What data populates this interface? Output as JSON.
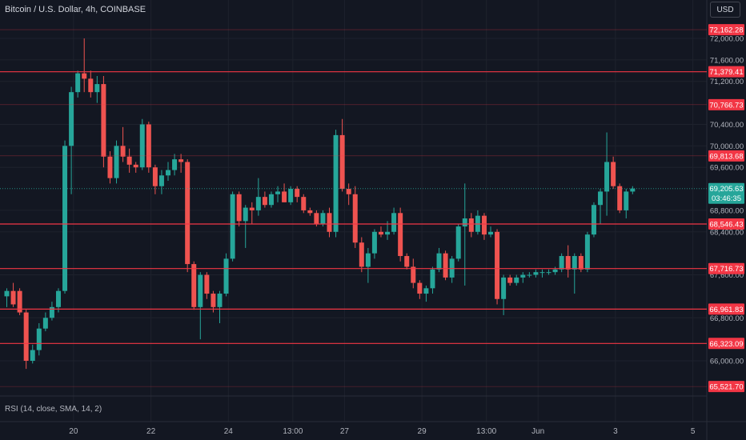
{
  "header": {
    "symbol_title": "Bitcoin / U.S. Dollar, 4h, COINBASE",
    "currency_button": "USD"
  },
  "indicator": {
    "rsi_label": "RSI (14, close, SMA, 14, 2)"
  },
  "colors": {
    "background": "#131722",
    "up": "#26a69a",
    "down": "#ef5350",
    "level_line": "#f23645",
    "axis_text": "#b2b5be",
    "grid": "#1e222d",
    "last_price_badge": "#26a69a"
  },
  "chart_data": {
    "type": "candlestick",
    "y_axis": {
      "ticks": [
        72000,
        71600,
        71200,
        70400,
        70000,
        69600,
        68800,
        68400,
        67600,
        66800,
        66000
      ],
      "tick_labels": [
        "72,000.00",
        "71,600.00",
        "71,200.00",
        "70,400.00",
        "70,000.00",
        "69,600.00",
        "68,800.00",
        "68,400.00",
        "67,600.00",
        "66,800.00",
        "66,000.00"
      ],
      "range": [
        65400,
        72300
      ]
    },
    "x_axis": {
      "ticks": [
        {
          "label": "20",
          "index": 6
        },
        {
          "label": "22",
          "index": 18
        },
        {
          "label": "24",
          "index": 30
        },
        {
          "label": "13:00",
          "index": 40
        },
        {
          "label": "27",
          "index": 48
        },
        {
          "label": "29",
          "index": 60
        },
        {
          "label": "13:00",
          "index": 70
        },
        {
          "label": "Jun",
          "index": 78
        },
        {
          "label": "3",
          "index": 90
        },
        {
          "label": "5",
          "index": 102
        }
      ]
    },
    "levels": [
      {
        "price": 72162.28,
        "label": "72,162.28",
        "line": false
      },
      {
        "price": 71379.41,
        "label": "71,379.41",
        "line": true
      },
      {
        "price": 70766.73,
        "label": "70,766.73",
        "line": false
      },
      {
        "price": 69813.68,
        "label": "69,813.68",
        "line": false
      },
      {
        "price": 68546.43,
        "label": "68,546.43",
        "line": true
      },
      {
        "price": 67716.73,
        "label": "67,716.73",
        "line": true
      },
      {
        "price": 66961.83,
        "label": "66,961.83",
        "line": true
      },
      {
        "price": 66323.09,
        "label": "66,323.09",
        "line": true
      },
      {
        "price": 65521.7,
        "label": "65,521.70",
        "line": false
      }
    ],
    "last_price": {
      "price": 69205.63,
      "label": "69,205.63",
      "countdown": "03:46:35"
    },
    "candles": [
      {
        "o": 67200,
        "h": 67350,
        "l": 67000,
        "c": 67300
      },
      {
        "o": 67300,
        "h": 67450,
        "l": 67000,
        "c": 67050
      },
      {
        "o": 67300,
        "h": 67350,
        "l": 66850,
        "c": 66900
      },
      {
        "o": 66900,
        "h": 66950,
        "l": 65850,
        "c": 66000
      },
      {
        "o": 66000,
        "h": 66300,
        "l": 65950,
        "c": 66200
      },
      {
        "o": 66200,
        "h": 66700,
        "l": 66100,
        "c": 66600
      },
      {
        "o": 66600,
        "h": 66900,
        "l": 66550,
        "c": 66800
      },
      {
        "o": 66800,
        "h": 67100,
        "l": 66750,
        "c": 67000
      },
      {
        "o": 67000,
        "h": 67350,
        "l": 66900,
        "c": 67300
      },
      {
        "o": 67300,
        "h": 70100,
        "l": 67250,
        "c": 70000
      },
      {
        "o": 70000,
        "h": 71100,
        "l": 69100,
        "c": 71000
      },
      {
        "o": 71000,
        "h": 71400,
        "l": 70900,
        "c": 71350
      },
      {
        "o": 71350,
        "h": 72000,
        "l": 71000,
        "c": 71250
      },
      {
        "o": 71250,
        "h": 71400,
        "l": 70900,
        "c": 71000
      },
      {
        "o": 71000,
        "h": 71300,
        "l": 70800,
        "c": 71150
      },
      {
        "o": 71150,
        "h": 71300,
        "l": 69600,
        "c": 69800
      },
      {
        "o": 69800,
        "h": 69900,
        "l": 69300,
        "c": 69400
      },
      {
        "o": 69400,
        "h": 70100,
        "l": 69300,
        "c": 70000
      },
      {
        "o": 70000,
        "h": 70350,
        "l": 69700,
        "c": 69800
      },
      {
        "o": 69800,
        "h": 69950,
        "l": 69500,
        "c": 69650
      },
      {
        "o": 69650,
        "h": 69700,
        "l": 69500,
        "c": 69600
      },
      {
        "o": 69600,
        "h": 70500,
        "l": 69550,
        "c": 70400
      },
      {
        "o": 70400,
        "h": 70450,
        "l": 69500,
        "c": 69600
      },
      {
        "o": 69600,
        "h": 69650,
        "l": 69100,
        "c": 69250
      },
      {
        "o": 69250,
        "h": 69550,
        "l": 69100,
        "c": 69450
      },
      {
        "o": 69450,
        "h": 69700,
        "l": 69350,
        "c": 69550
      },
      {
        "o": 69550,
        "h": 69850,
        "l": 69450,
        "c": 69750
      },
      {
        "o": 69750,
        "h": 69850,
        "l": 69500,
        "c": 69700
      },
      {
        "o": 69700,
        "h": 69750,
        "l": 67650,
        "c": 67800
      },
      {
        "o": 67800,
        "h": 67850,
        "l": 66950,
        "c": 67000
      },
      {
        "o": 67000,
        "h": 67650,
        "l": 66400,
        "c": 67600
      },
      {
        "o": 67600,
        "h": 67650,
        "l": 67150,
        "c": 67250
      },
      {
        "o": 67250,
        "h": 67300,
        "l": 66900,
        "c": 67000
      },
      {
        "o": 67000,
        "h": 67300,
        "l": 66700,
        "c": 67250
      },
      {
        "o": 67250,
        "h": 68000,
        "l": 67200,
        "c": 67900
      },
      {
        "o": 67900,
        "h": 69150,
        "l": 67850,
        "c": 69100
      },
      {
        "o": 69100,
        "h": 69150,
        "l": 68500,
        "c": 68600
      },
      {
        "o": 68600,
        "h": 68900,
        "l": 68100,
        "c": 68850
      },
      {
        "o": 68850,
        "h": 68950,
        "l": 68550,
        "c": 68800
      },
      {
        "o": 68800,
        "h": 69400,
        "l": 68700,
        "c": 69050
      },
      {
        "o": 69050,
        "h": 69150,
        "l": 68850,
        "c": 68900
      },
      {
        "o": 68900,
        "h": 69150,
        "l": 68850,
        "c": 69100
      },
      {
        "o": 69100,
        "h": 69250,
        "l": 68950,
        "c": 69150
      },
      {
        "o": 69150,
        "h": 69300,
        "l": 68950,
        "c": 68950
      },
      {
        "o": 68950,
        "h": 69250,
        "l": 68900,
        "c": 69200
      },
      {
        "o": 69200,
        "h": 69250,
        "l": 68950,
        "c": 69050
      },
      {
        "o": 69050,
        "h": 69100,
        "l": 68750,
        "c": 68800
      },
      {
        "o": 68800,
        "h": 68850,
        "l": 68700,
        "c": 68750
      },
      {
        "o": 68750,
        "h": 68800,
        "l": 68500,
        "c": 68550
      },
      {
        "o": 68550,
        "h": 68800,
        "l": 68500,
        "c": 68750
      },
      {
        "o": 68750,
        "h": 68850,
        "l": 68300,
        "c": 68400
      },
      {
        "o": 68400,
        "h": 70300,
        "l": 68300,
        "c": 70200
      },
      {
        "o": 70200,
        "h": 70500,
        "l": 69150,
        "c": 69200
      },
      {
        "o": 69200,
        "h": 69300,
        "l": 68900,
        "c": 69100
      },
      {
        "o": 69100,
        "h": 69250,
        "l": 68100,
        "c": 68200
      },
      {
        "o": 68200,
        "h": 68300,
        "l": 67650,
        "c": 67750
      },
      {
        "o": 67750,
        "h": 68100,
        "l": 67450,
        "c": 68000
      },
      {
        "o": 68000,
        "h": 68450,
        "l": 67900,
        "c": 68400
      },
      {
        "o": 68400,
        "h": 68500,
        "l": 68300,
        "c": 68350
      },
      {
        "o": 68350,
        "h": 68600,
        "l": 68250,
        "c": 68400
      },
      {
        "o": 68400,
        "h": 68850,
        "l": 68350,
        "c": 68750
      },
      {
        "o": 68750,
        "h": 68850,
        "l": 67850,
        "c": 67950
      },
      {
        "o": 67950,
        "h": 68000,
        "l": 67700,
        "c": 67750
      },
      {
        "o": 67750,
        "h": 67900,
        "l": 67350,
        "c": 67450
      },
      {
        "o": 67450,
        "h": 67500,
        "l": 67150,
        "c": 67250
      },
      {
        "o": 67250,
        "h": 67400,
        "l": 67100,
        "c": 67350
      },
      {
        "o": 67350,
        "h": 67750,
        "l": 67250,
        "c": 67700
      },
      {
        "o": 67700,
        "h": 68100,
        "l": 67650,
        "c": 68000
      },
      {
        "o": 68000,
        "h": 68050,
        "l": 67500,
        "c": 67550
      },
      {
        "o": 67550,
        "h": 67950,
        "l": 67450,
        "c": 67900
      },
      {
        "o": 67900,
        "h": 68550,
        "l": 67850,
        "c": 68500
      },
      {
        "o": 68500,
        "h": 69300,
        "l": 67400,
        "c": 68650
      },
      {
        "o": 68650,
        "h": 68750,
        "l": 68300,
        "c": 68400
      },
      {
        "o": 68400,
        "h": 68800,
        "l": 68350,
        "c": 68700
      },
      {
        "o": 68700,
        "h": 68750,
        "l": 68250,
        "c": 68350
      },
      {
        "o": 68350,
        "h": 68500,
        "l": 68300,
        "c": 68400
      },
      {
        "o": 68400,
        "h": 68450,
        "l": 67050,
        "c": 67150
      },
      {
        "o": 67150,
        "h": 67600,
        "l": 66850,
        "c": 67550
      },
      {
        "o": 67550,
        "h": 67600,
        "l": 67400,
        "c": 67450
      },
      {
        "o": 67450,
        "h": 67600,
        "l": 67400,
        "c": 67550
      },
      {
        "o": 67550,
        "h": 67650,
        "l": 67450,
        "c": 67600
      },
      {
        "o": 67600,
        "h": 67650,
        "l": 67550,
        "c": 67600
      },
      {
        "o": 67600,
        "h": 67700,
        "l": 67550,
        "c": 67650
      },
      {
        "o": 67650,
        "h": 67700,
        "l": 67550,
        "c": 67650
      },
      {
        "o": 67650,
        "h": 67700,
        "l": 67600,
        "c": 67650
      },
      {
        "o": 67650,
        "h": 67750,
        "l": 67600,
        "c": 67700
      },
      {
        "o": 67700,
        "h": 68000,
        "l": 67650,
        "c": 67950
      },
      {
        "o": 67950,
        "h": 68150,
        "l": 67550,
        "c": 67700
      },
      {
        "o": 67700,
        "h": 68000,
        "l": 67250,
        "c": 67950
      },
      {
        "o": 67950,
        "h": 68000,
        "l": 67650,
        "c": 67700
      },
      {
        "o": 67700,
        "h": 68400,
        "l": 67650,
        "c": 68350
      },
      {
        "o": 68350,
        "h": 68950,
        "l": 68300,
        "c": 68900
      },
      {
        "o": 68900,
        "h": 69200,
        "l": 68550,
        "c": 69150
      },
      {
        "o": 69150,
        "h": 70250,
        "l": 68700,
        "c": 69700
      },
      {
        "o": 69700,
        "h": 69800,
        "l": 69200,
        "c": 69250
      },
      {
        "o": 69250,
        "h": 69300,
        "l": 68750,
        "c": 68800
      },
      {
        "o": 68800,
        "h": 69200,
        "l": 68650,
        "c": 69150
      },
      {
        "o": 69150,
        "h": 69250,
        "l": 69100,
        "c": 69205.63
      }
    ]
  }
}
